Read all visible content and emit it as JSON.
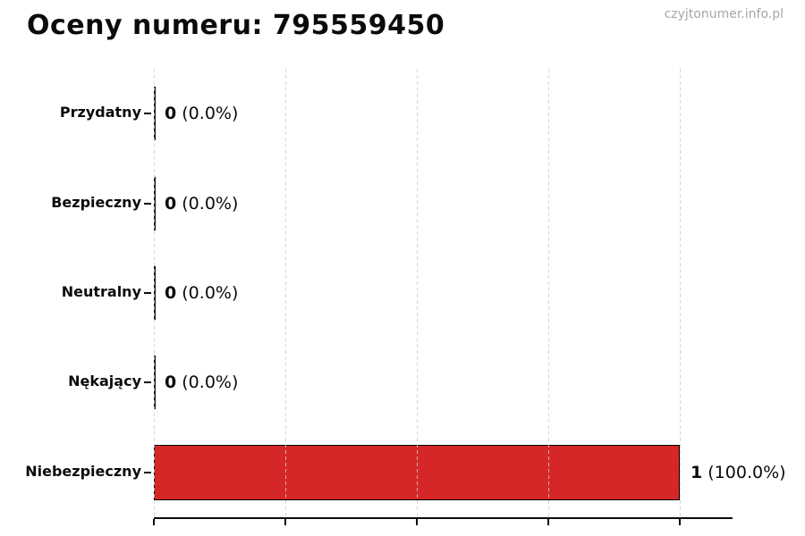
{
  "header": {
    "title": "Oceny numeru: 795559450",
    "watermark": "czyjtonumer.info.pl"
  },
  "chart_data": {
    "type": "bar",
    "orientation": "horizontal",
    "title": "Oceny numeru: 795559450",
    "categories": [
      "Przydatny",
      "Bezpieczny",
      "Neutralny",
      "Nękający",
      "Niebezpieczny"
    ],
    "values": [
      0,
      0,
      0,
      0,
      1
    ],
    "value_labels": [
      {
        "count": "0",
        "percent": "(0.0%)"
      },
      {
        "count": "0",
        "percent": "(0.0%)"
      },
      {
        "count": "0",
        "percent": "(0.0%)"
      },
      {
        "count": "0",
        "percent": "(0.0%)"
      },
      {
        "count": "1",
        "percent": "(100.0%)"
      }
    ],
    "xlabel": "",
    "ylabel": "",
    "xlim": [
      0,
      1.1
    ],
    "xticks": [
      0,
      0.25,
      0.5,
      0.75,
      1.0
    ],
    "xtick_labels_visible": false,
    "grid": true,
    "legend": "none",
    "colors": {
      "bar_fill": "#d62728",
      "bar_edge": "#000000",
      "zero_bar": "#111111",
      "grid": "#cdcdcd",
      "watermark": "#a6a6a6",
      "text": "#000000"
    }
  }
}
